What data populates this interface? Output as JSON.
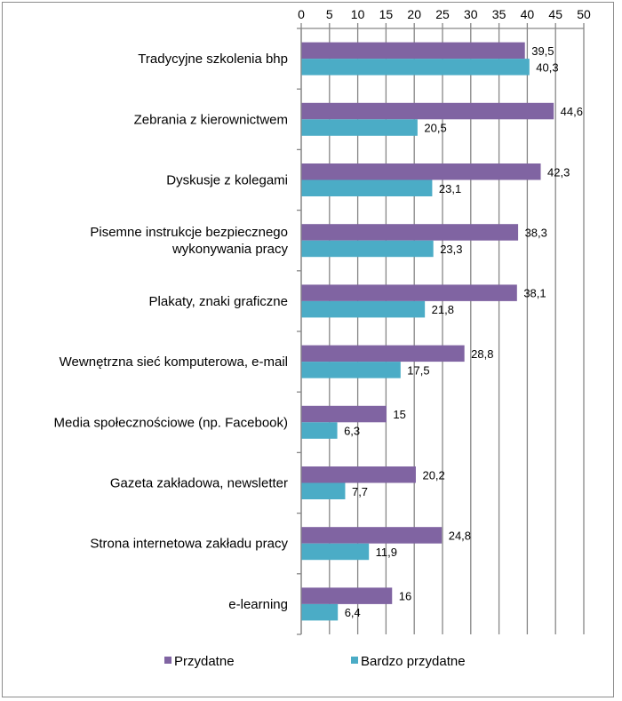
{
  "chart_data": {
    "type": "bar",
    "orientation": "horizontal",
    "title": "",
    "xlabel": "",
    "ylabel": "",
    "xlim": [
      0,
      50
    ],
    "x_ticks": [
      "0",
      "5",
      "10",
      "15",
      "20",
      "25",
      "30",
      "35",
      "40",
      "45",
      "50"
    ],
    "x_axis_position": "top",
    "grid": true,
    "legend_position": "bottom",
    "categories": [
      "Tradycyjne szkolenia bhp",
      "Zebrania z kierownictwem",
      "Dyskusje z kolegami",
      "Pisemne instrukcje bezpiecznego wykonywania pracy",
      "Plakaty, znaki graficzne",
      "Wewnętrzna sieć komputerowa, e-mail",
      "Media społecznościowe (np. Facebook)",
      "Gazeta zakładowa, newsletter",
      "Strona internetowa zakładu pracy",
      "e-learning"
    ],
    "category_label_lines": [
      [
        "Tradycyjne szkolenia bhp"
      ],
      [
        "Zebrania z kierownictwem"
      ],
      [
        "Dyskusje z kolegami"
      ],
      [
        "Pisemne instrukcje bezpiecznego",
        "wykonywania pracy"
      ],
      [
        "Plakaty, znaki graficzne"
      ],
      [
        "Wewnętrzna sieć komputerowa, e-mail"
      ],
      [
        "Media społecznościowe (np. Facebook)"
      ],
      [
        "Gazeta zakładowa, newsletter"
      ],
      [
        "Strona internetowa zakładu pracy"
      ],
      [
        "e-learning"
      ]
    ],
    "series": [
      {
        "name": "Przydatne",
        "color": "#8064a2",
        "values": [
          39.5,
          44.6,
          42.3,
          38.3,
          38.1,
          28.8,
          15,
          20.2,
          24.8,
          16
        ],
        "labels": [
          "39,5",
          "44,6",
          "42,3",
          "38,3",
          "38,1",
          "28,8",
          "15",
          "20,2",
          "24,8",
          "16"
        ]
      },
      {
        "name": "Bardzo przydatne",
        "color": "#4bacc6",
        "values": [
          40.3,
          20.5,
          23.1,
          23.3,
          21.8,
          17.5,
          6.3,
          7.7,
          11.9,
          6.4
        ],
        "labels": [
          "40,3",
          "20,5",
          "23,1",
          "23,3",
          "21,8",
          "17,5",
          "6,3",
          "7,7",
          "11,9",
          "6,4"
        ]
      }
    ]
  }
}
